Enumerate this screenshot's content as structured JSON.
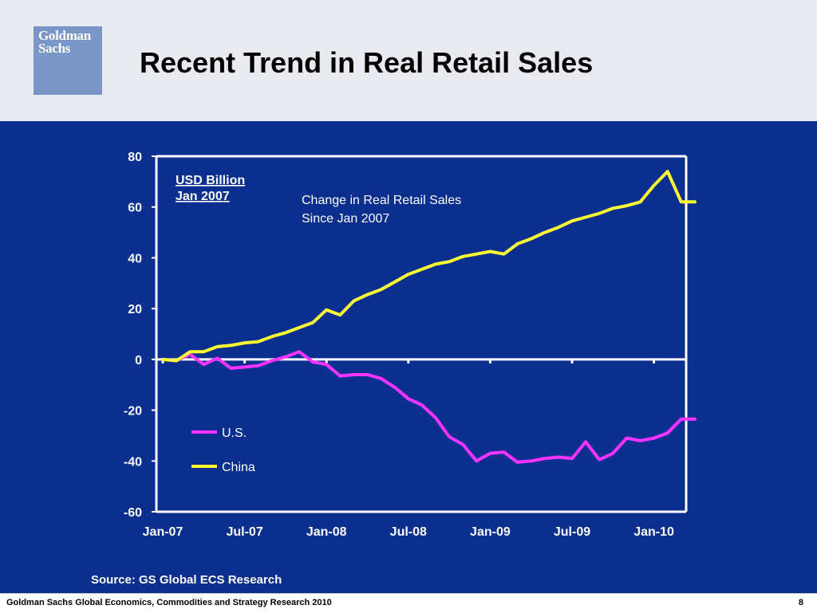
{
  "header": {
    "logo_text": "Goldman\nSachs",
    "title": "Recent Trend in Real Retail Sales"
  },
  "colors": {
    "panel_bg": "#0a2f8f",
    "us": "#ff33ff",
    "china": "#ffff33",
    "axis": "#ffffff"
  },
  "chart_data": {
    "type": "line",
    "title": "Change in Real Retail Sales Since Jan 2007",
    "unit_note": "USD Billion Jan 2007",
    "ylim": [
      -60,
      80
    ],
    "yticks": [
      -60,
      -40,
      -20,
      0,
      20,
      40,
      60,
      80
    ],
    "xtick_labels": [
      "Jan-07",
      "Jul-07",
      "Jan-08",
      "Jul-08",
      "Jan-09",
      "Jul-09",
      "Jan-10"
    ],
    "grid": false,
    "legend_placement": "lower-left",
    "x": [
      "Jan-07",
      "Feb-07",
      "Mar-07",
      "Apr-07",
      "May-07",
      "Jun-07",
      "Jul-07",
      "Aug-07",
      "Sep-07",
      "Oct-07",
      "Nov-07",
      "Dec-07",
      "Jan-08",
      "Feb-08",
      "Mar-08",
      "Apr-08",
      "May-08",
      "Jun-08",
      "Jul-08",
      "Aug-08",
      "Sep-08",
      "Oct-08",
      "Nov-08",
      "Dec-08",
      "Jan-09",
      "Feb-09",
      "Mar-09",
      "Apr-09",
      "May-09",
      "Jun-09",
      "Jul-09",
      "Aug-09",
      "Sep-09",
      "Oct-09",
      "Nov-09",
      "Dec-09",
      "Jan-10",
      "Feb-10",
      "Mar-10",
      "Apr-10"
    ],
    "series": [
      {
        "name": "U.S.",
        "values": [
          0,
          -0.5,
          2,
          -2,
          0.5,
          -3.5,
          -3,
          -2.5,
          -0.5,
          1,
          3,
          -1,
          -2,
          -6.5,
          -6,
          -6,
          -7.5,
          -11,
          -15.5,
          -18,
          -23,
          -30.5,
          -33.5,
          -40,
          -37,
          -36.5,
          -40.5,
          -40,
          -39,
          -38.5,
          -39,
          -32.5,
          -39.5,
          -37,
          -31,
          -32,
          -31,
          -29,
          -23.5,
          -23.5
        ]
      },
      {
        "name": "China",
        "values": [
          0,
          -0.5,
          3,
          3,
          5,
          5.5,
          6.5,
          7,
          9,
          10.5,
          12.5,
          14.5,
          19.5,
          17.5,
          23,
          25.5,
          27.5,
          30.5,
          33.5,
          35.5,
          37.5,
          38.5,
          40.5,
          41.5,
          42.5,
          41.5,
          45.5,
          47.5,
          50,
          52,
          54.5,
          56,
          57.5,
          59.5,
          60.5,
          62,
          68.5,
          74,
          62,
          62
        ]
      }
    ],
    "source": "Source: GS Global ECS Research"
  },
  "footer": {
    "text": "Goldman Sachs Global Economics, Commodities and Strategy Research 2010",
    "page": "8"
  }
}
